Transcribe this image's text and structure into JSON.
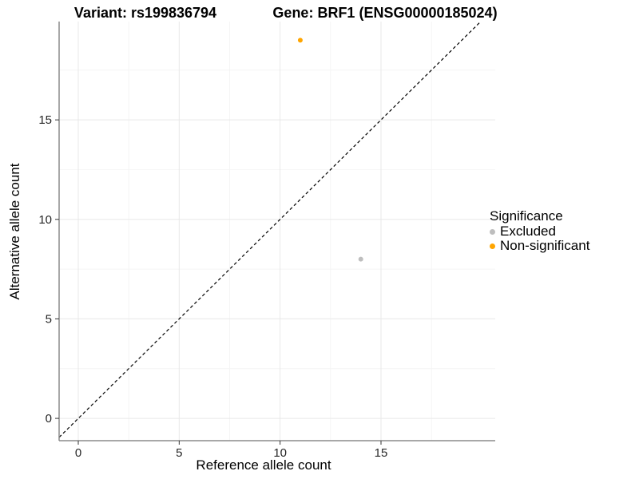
{
  "titles": {
    "left": "Variant: rs199836794",
    "right": "Gene: BRF1 (ENSG00000185024)"
  },
  "chart_data": {
    "type": "scatter",
    "xlabel": "Reference allele count",
    "ylabel": "Alternative allele count",
    "xlim": [
      -0.95,
      20.66
    ],
    "ylim": [
      -1.12,
      19.94
    ],
    "x_ticks": [
      0,
      5,
      10,
      15
    ],
    "y_ticks": [
      0,
      5,
      10,
      15
    ],
    "x_minor_ticks": [
      2.5,
      7.5,
      12.5,
      17.5
    ],
    "y_minor_ticks": [
      2.5,
      7.5,
      12.5,
      17.5
    ],
    "grid": {
      "major_color": "#E8E8E8",
      "minor_color": "#F4F4F4"
    },
    "identity_line": {
      "type": "y=x",
      "style": "dashed",
      "color": "#000000"
    },
    "series": [
      {
        "name": "Excluded",
        "color": "#BEBEBE",
        "points": [
          {
            "x": 14,
            "y": 8
          }
        ]
      },
      {
        "name": "Non-significant",
        "color": "#FFA500",
        "points": [
          {
            "x": 11,
            "y": 19
          }
        ]
      }
    ],
    "legend": {
      "title": "Significance",
      "position": "right"
    }
  },
  "colors": {
    "axis_line": "#8C8C8C",
    "tick_mark": "#333333",
    "tick_label": "#262626"
  }
}
